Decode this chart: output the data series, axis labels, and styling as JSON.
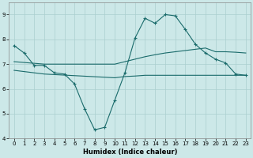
{
  "xlabel": "Humidex (Indice chaleur)",
  "bg_color": "#cce8e8",
  "grid_color": "#aacfcf",
  "line_color": "#1a6b6b",
  "xlim": [
    -0.5,
    23.5
  ],
  "ylim": [
    4,
    9.5
  ],
  "yticks": [
    4,
    5,
    6,
    7,
    8,
    9
  ],
  "xticks": [
    0,
    1,
    2,
    3,
    4,
    5,
    6,
    7,
    8,
    9,
    10,
    11,
    12,
    13,
    14,
    15,
    16,
    17,
    18,
    19,
    20,
    21,
    22,
    23
  ],
  "line1_x": [
    0,
    1,
    2,
    3,
    4,
    5,
    6,
    7,
    8,
    9,
    10,
    11,
    12,
    13,
    14,
    15,
    16,
    17,
    18,
    19,
    20,
    21,
    22,
    23
  ],
  "line1_y": [
    7.75,
    7.45,
    6.95,
    6.95,
    6.65,
    6.6,
    6.2,
    5.2,
    4.35,
    4.45,
    5.55,
    6.65,
    8.05,
    8.85,
    8.65,
    9.0,
    8.95,
    8.4,
    7.8,
    7.45,
    7.2,
    7.05,
    6.6,
    6.55
  ],
  "line2_x": [
    0,
    3,
    10,
    11,
    12,
    13,
    14,
    15,
    16,
    17,
    18,
    19,
    20,
    21,
    22,
    23
  ],
  "line2_y": [
    7.1,
    7.0,
    7.0,
    7.1,
    7.2,
    7.3,
    7.38,
    7.45,
    7.5,
    7.55,
    7.6,
    7.65,
    7.5,
    7.5,
    7.48,
    7.45
  ],
  "line3_x": [
    0,
    3,
    10,
    11,
    12,
    13,
    14,
    15,
    16,
    17,
    18,
    19,
    20,
    21,
    22,
    23
  ],
  "line3_y": [
    6.75,
    6.6,
    6.45,
    6.5,
    6.52,
    6.55,
    6.55,
    6.55,
    6.55,
    6.55,
    6.55,
    6.55,
    6.55,
    6.55,
    6.55,
    6.55
  ]
}
